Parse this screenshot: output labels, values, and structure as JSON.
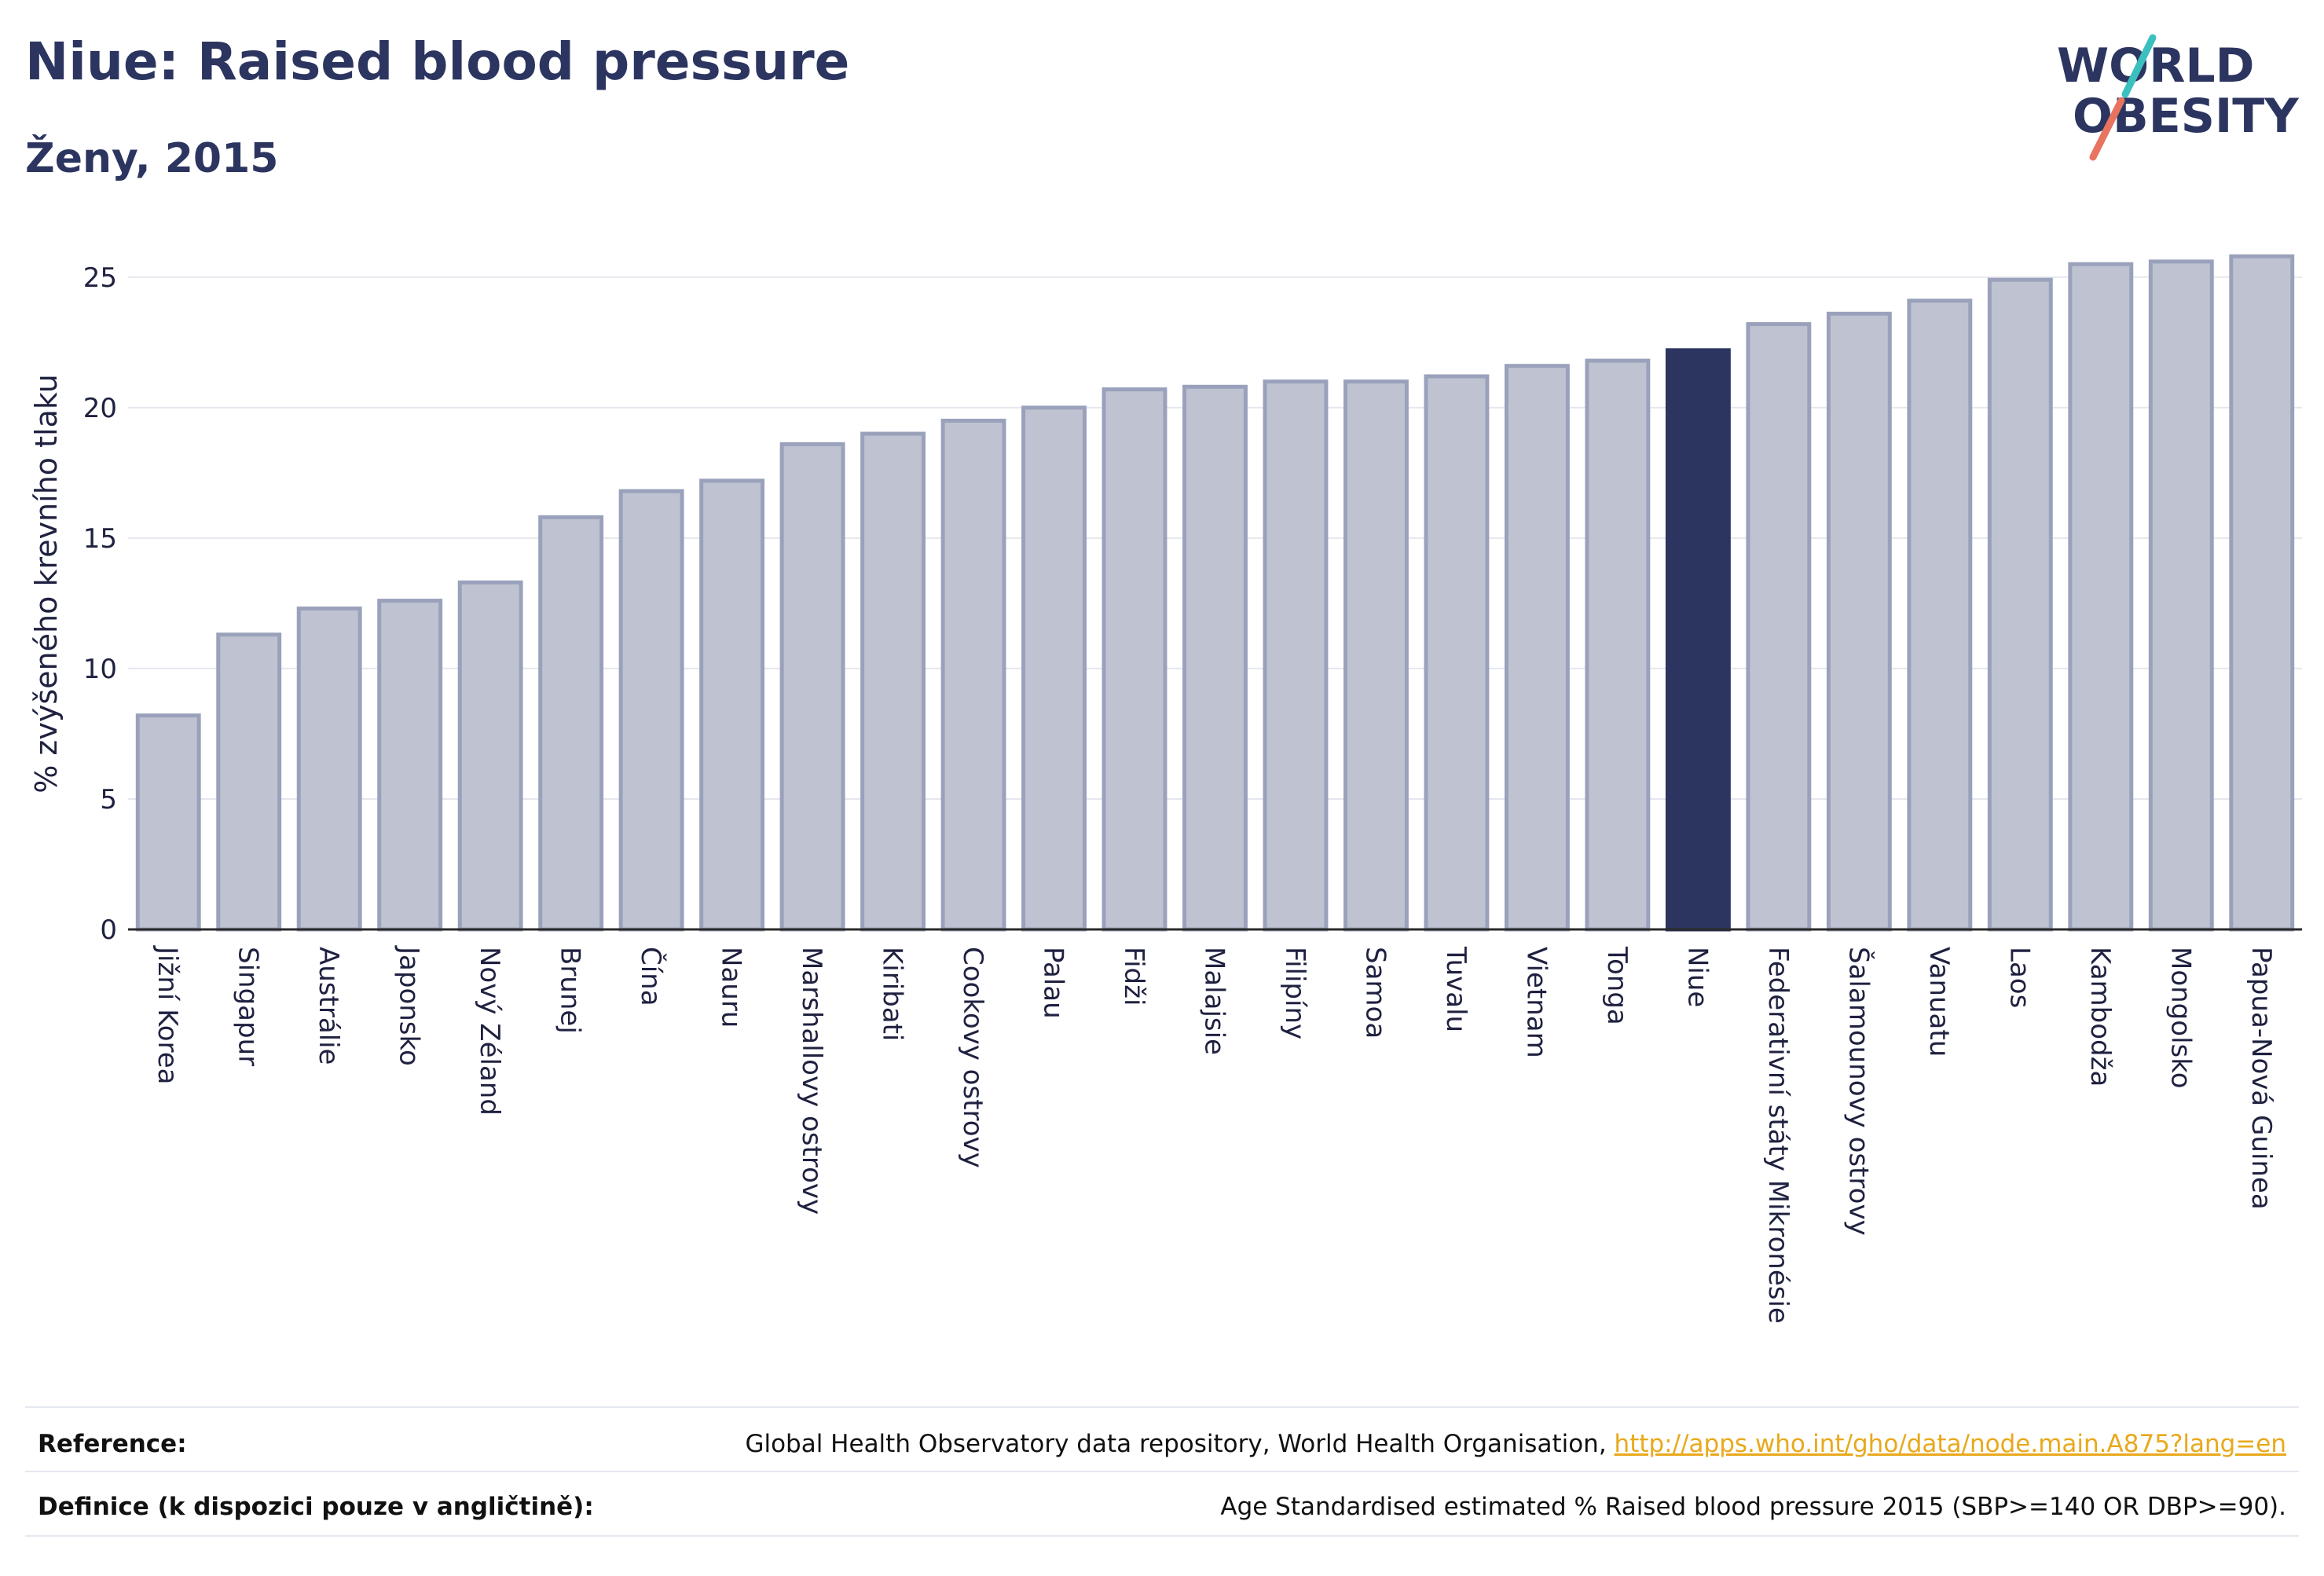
{
  "header": {
    "title": "Niue: Raised blood pressure",
    "subtitle": "Ženy, 2015"
  },
  "logo": {
    "line1": "WORLD",
    "line2": "OBESITY",
    "accent_teal": "#3cbfbf",
    "accent_coral": "#e8735f",
    "text_color": "#2c3560"
  },
  "chart_data": {
    "type": "bar",
    "ylabel": "% zvýšeného krevního tlaku",
    "ylim": [
      0,
      26.5
    ],
    "yticks": [
      0,
      5,
      10,
      15,
      20,
      25
    ],
    "grid": true,
    "highlight": "Niue",
    "highlight_color": "#2c3560",
    "bar_color": "#bfc3d1",
    "bar_border_color": "#9aa1bb",
    "categories": [
      "Jižní Korea",
      "Singapur",
      "Austrálie",
      "Japonsko",
      "Nový Zéland",
      "Brunej",
      "Čína",
      "Nauru",
      "Marshallovy ostrovy",
      "Kiribati",
      "Cookovy ostrovy",
      "Palau",
      "Fidži",
      "Malajsie",
      "Filipíny",
      "Samoa",
      "Tuvalu",
      "Vietnam",
      "Tonga",
      "Niue",
      "Federativní státy Mikronésie",
      "Šalamounovy ostrovy",
      "Vanuatu",
      "Laos",
      "Kambodža",
      "Mongolsko",
      "Papua-Nová Guinea"
    ],
    "values": [
      8.2,
      11.3,
      12.3,
      12.6,
      13.3,
      15.8,
      16.8,
      17.2,
      18.6,
      19.0,
      19.5,
      20.0,
      20.7,
      20.8,
      21.0,
      21.0,
      21.2,
      21.6,
      21.8,
      22.2,
      23.2,
      23.6,
      24.1,
      24.9,
      25.5,
      25.6,
      25.8
    ]
  },
  "footer": {
    "reference_label": "Reference:",
    "reference_text": "Global Health Observatory data repository, World Health Organisation, ",
    "reference_link": "http://apps.who.int/gho/data/node.main.A875?lang=en",
    "definition_label": "Definice (k dispozici pouze v angličtině):",
    "definition_text": "Age Standardised estimated % Raised blood pressure 2015 (SBP>=140 OR DBP>=90)."
  }
}
